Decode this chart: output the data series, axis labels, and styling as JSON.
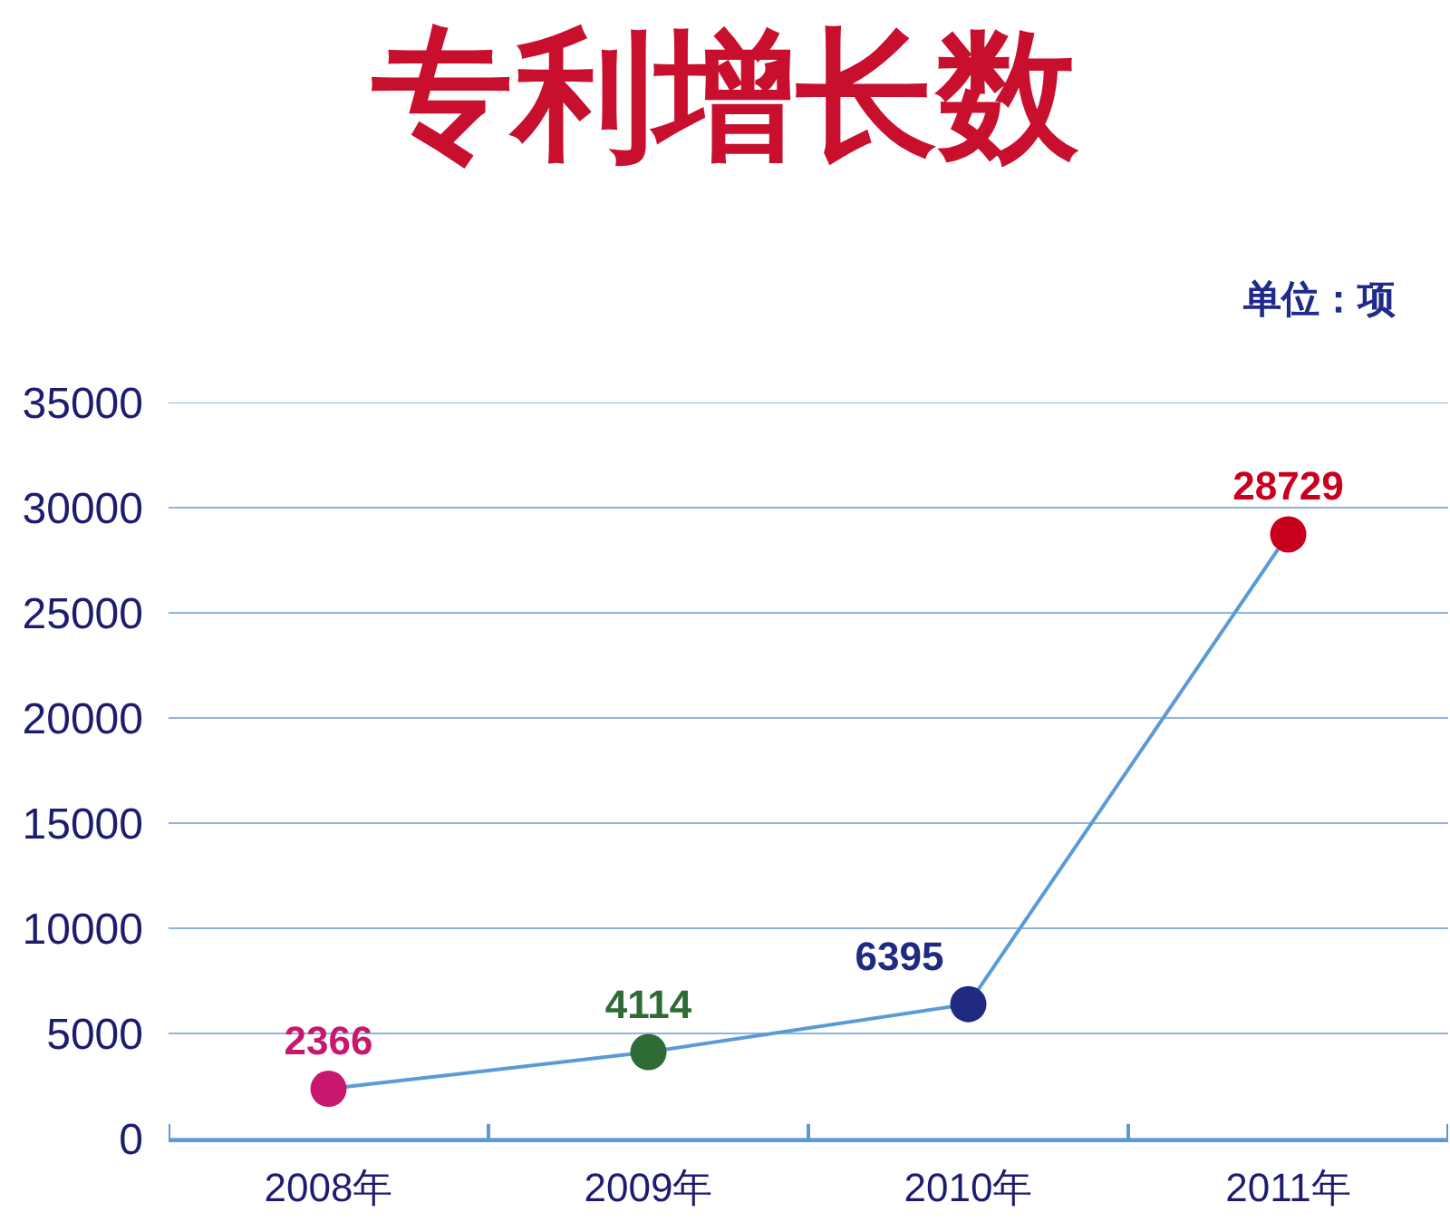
{
  "chart_data": {
    "type": "line",
    "title": "专利增长数",
    "annotations": [
      "单位：项"
    ],
    "categories": [
      "2008年",
      "2009年",
      "2010年",
      "2011年"
    ],
    "series": [
      {
        "color": "#5b9bd5",
        "colors": [
          "#c8186e",
          "#2e6b35",
          "#1f2a80",
          "#c8001e"
        ],
        "values": [
          2366,
          4114,
          6395,
          28729
        ]
      }
    ],
    "ylim": [
      0,
      35000
    ],
    "yticks": [
      0,
      5000,
      10000,
      15000,
      20000,
      25000,
      30000,
      35000
    ],
    "grid": "y",
    "marker": "circle",
    "line_style": "solid",
    "data_labels": true
  }
}
